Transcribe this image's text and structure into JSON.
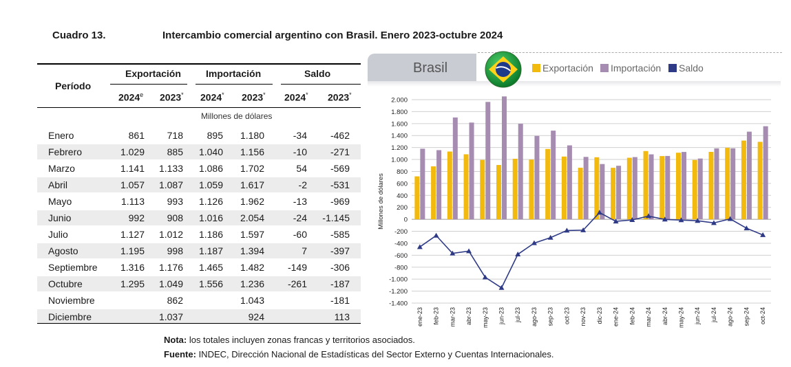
{
  "title": {
    "label": "Cuadro 13.",
    "text": "Intercambio comercial argentino con Brasil. Enero 2023-octubre 2024"
  },
  "table": {
    "period_header": "Período",
    "groups": [
      "Exportación",
      "Importación",
      "Saldo"
    ],
    "subheaders": [
      {
        "year": "2024",
        "mark": "e"
      },
      {
        "year": "2023",
        "mark": "*"
      },
      {
        "year": "2024",
        "mark": "*"
      },
      {
        "year": "2023",
        "mark": "*"
      },
      {
        "year": "2024",
        "mark": "*"
      },
      {
        "year": "2023",
        "mark": "*"
      }
    ],
    "units": "Millones de dólares",
    "rows": [
      {
        "month": "Enero",
        "values": [
          "861",
          "718",
          "895",
          "1.180",
          "-34",
          "-462"
        ]
      },
      {
        "month": "Febrero",
        "values": [
          "1.029",
          "885",
          "1.040",
          "1.156",
          "-10",
          "-271"
        ]
      },
      {
        "month": "Marzo",
        "values": [
          "1.141",
          "1.133",
          "1.086",
          "1.702",
          "54",
          "-569"
        ]
      },
      {
        "month": "Abril",
        "values": [
          "1.057",
          "1.087",
          "1.059",
          "1.617",
          "-2",
          "-531"
        ]
      },
      {
        "month": "Mayo",
        "values": [
          "1.113",
          "993",
          "1.126",
          "1.962",
          "-13",
          "-969"
        ]
      },
      {
        "month": "Junio",
        "values": [
          "992",
          "908",
          "1.016",
          "2.054",
          "-24",
          "-1.145"
        ]
      },
      {
        "month": "Julio",
        "values": [
          "1.127",
          "1.012",
          "1.186",
          "1.597",
          "-60",
          "-585"
        ]
      },
      {
        "month": "Agosto",
        "values": [
          "1.195",
          "998",
          "1.187",
          "1.394",
          "7",
          "-397"
        ]
      },
      {
        "month": "Septiembre",
        "values": [
          "1.316",
          "1.176",
          "1.465",
          "1.482",
          "-149",
          "-306"
        ]
      },
      {
        "month": "Octubre",
        "values": [
          "1.295",
          "1.049",
          "1.556",
          "1.236",
          "-261",
          "-187"
        ]
      },
      {
        "month": "Noviembre",
        "values": [
          "",
          "862",
          "",
          "1.043",
          "",
          "-181"
        ]
      },
      {
        "month": "Diciembre",
        "values": [
          "",
          "1.037",
          "",
          "924",
          "",
          "113"
        ]
      }
    ]
  },
  "chart_header": {
    "country": "Brasil",
    "legend": [
      "Exportación",
      "Importación",
      "Saldo"
    ]
  },
  "colors": {
    "export": "#f2b90f",
    "import": "#a68cb0",
    "saldo": "#2e3a86",
    "grid": "#cfcfcf",
    "tab": "#c9ccd3"
  },
  "chart_data": {
    "type": "bar",
    "title": "Brasil",
    "xlabel": "",
    "ylabel": "Millones de dólares",
    "ylim": [
      -1400,
      2000
    ],
    "yticks": [
      2000,
      1800,
      1600,
      1400,
      1200,
      1000,
      800,
      600,
      400,
      200,
      0,
      -200,
      -400,
      -600,
      -800,
      -1000,
      -1200,
      -1400
    ],
    "ytick_labels": [
      "2.000",
      "1.800",
      "1.600",
      "1.400",
      "1.200",
      "1.000",
      "800",
      "600",
      "400",
      "200",
      "0",
      "-200",
      "-400",
      "-600",
      "-800",
      "-1.000",
      "-1.200",
      "-1.400"
    ],
    "categories": [
      "ene-23",
      "feb-23",
      "mar-23",
      "abr-23",
      "may-23",
      "jun-23",
      "jul-23",
      "ago-23",
      "sep-23",
      "oct-23",
      "nov-23",
      "dic-23",
      "ene-24",
      "feb-24",
      "mar-24",
      "abr-24",
      "may-24",
      "jun-24",
      "jul-24",
      "ago-24",
      "sep-24",
      "oct-24"
    ],
    "series": [
      {
        "name": "Exportación",
        "kind": "bar",
        "values": [
          718,
          885,
          1133,
          1087,
          993,
          908,
          1012,
          998,
          1176,
          1049,
          862,
          1037,
          861,
          1029,
          1141,
          1057,
          1113,
          992,
          1127,
          1195,
          1316,
          1295
        ]
      },
      {
        "name": "Importación",
        "kind": "bar",
        "values": [
          1180,
          1156,
          1702,
          1617,
          1962,
          2054,
          1597,
          1394,
          1482,
          1236,
          1043,
          924,
          895,
          1040,
          1086,
          1059,
          1126,
          1016,
          1186,
          1187,
          1465,
          1556
        ]
      },
      {
        "name": "Saldo",
        "kind": "line",
        "values": [
          -462,
          -271,
          -569,
          -531,
          -969,
          -1145,
          -585,
          -397,
          -306,
          -187,
          -181,
          113,
          -34,
          -10,
          54,
          -2,
          -13,
          -24,
          -60,
          7,
          -149,
          -261
        ]
      }
    ],
    "legend_position": "top"
  },
  "notes": {
    "nota_label": "Nota:",
    "nota_text": " los totales incluyen zonas francas y territorios asociados.",
    "fuente_label": "Fuente:",
    "fuente_text": " INDEC, Dirección Nacional de Estadísticas del Sector Externo y Cuentas Internacionales."
  }
}
